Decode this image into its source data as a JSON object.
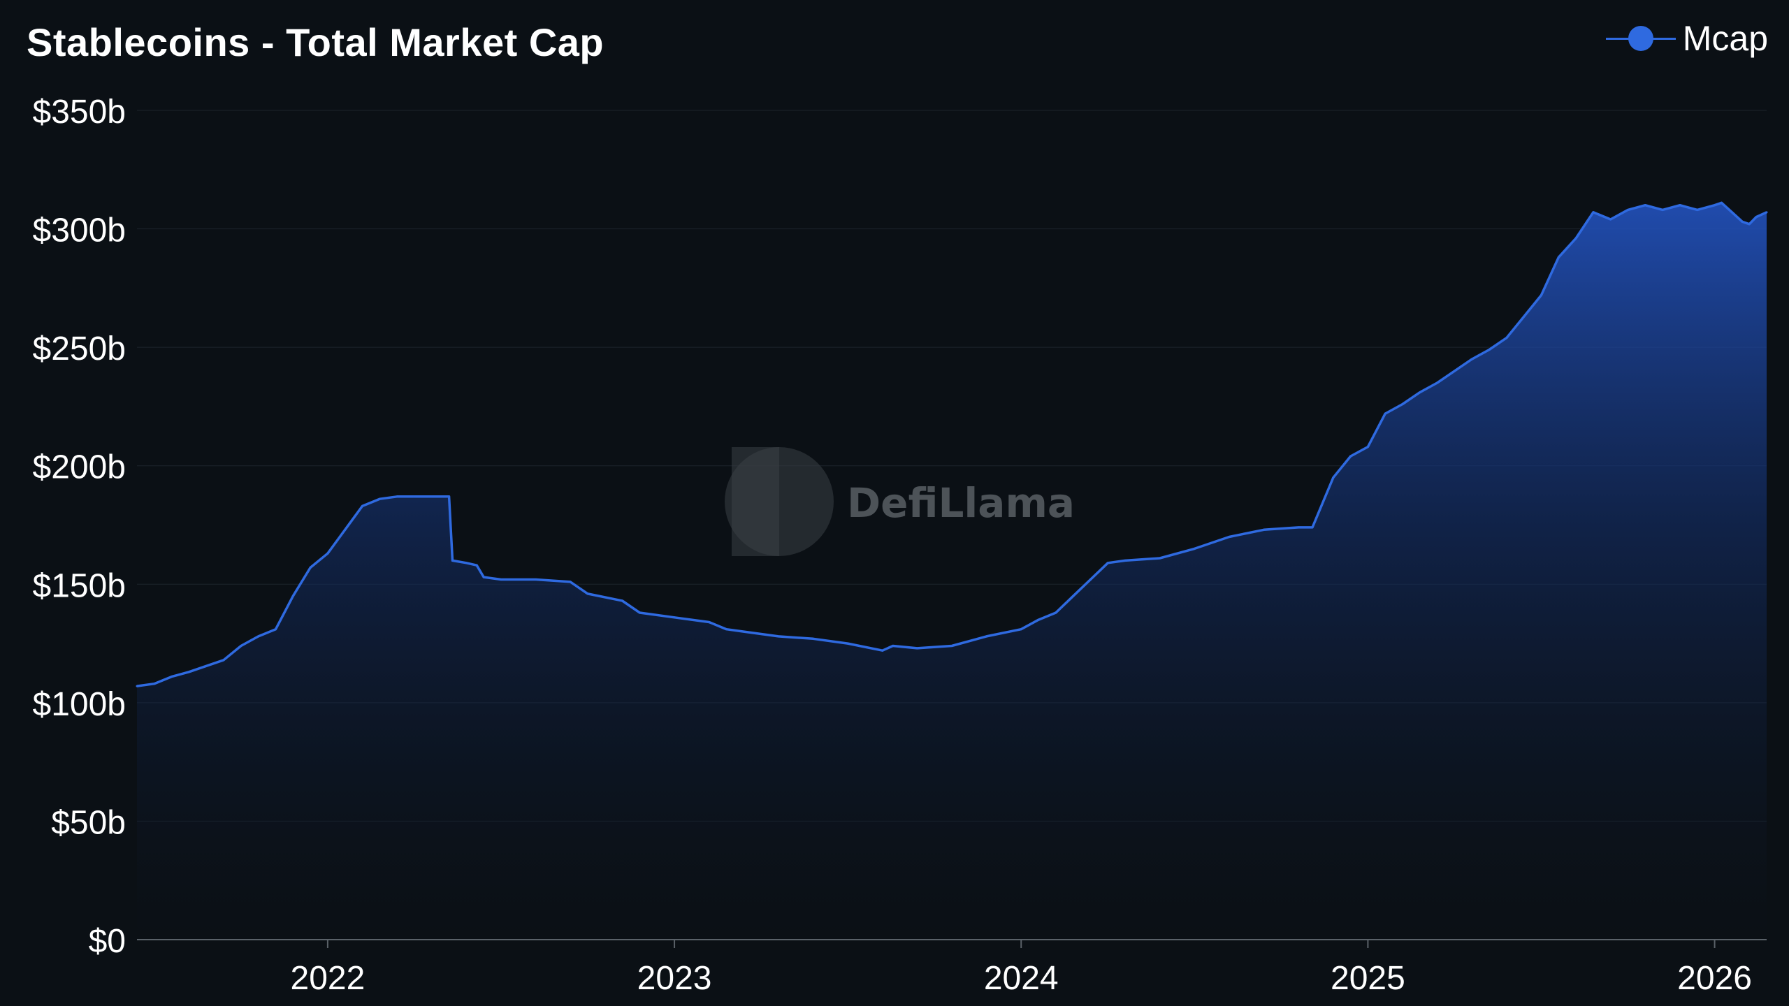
{
  "chart_data": {
    "type": "area",
    "title": "Stablecoins - Total Market Cap",
    "legend": {
      "placement": "top-right",
      "entries": [
        "Mcap"
      ]
    },
    "grid": true,
    "xlim": [
      2021.45,
      2026.15
    ],
    "ylim": [
      0,
      350
    ],
    "y_unit": "billions USD",
    "y_ticks": [
      0,
      50,
      100,
      150,
      200,
      250,
      300,
      350
    ],
    "y_tick_labels": [
      "$0",
      "$50b",
      "$100b",
      "$150b",
      "$200b",
      "$250b",
      "$300b",
      "$350b"
    ],
    "x_ticks": [
      2022,
      2023,
      2024,
      2025,
      2026
    ],
    "x_tick_labels": [
      "2022",
      "2023",
      "2024",
      "2025",
      "2026"
    ],
    "series": [
      {
        "name": "Mcap",
        "color": "#2f6ae0",
        "x": [
          2021.45,
          2021.5,
          2021.55,
          2021.6,
          2021.7,
          2021.75,
          2021.8,
          2021.85,
          2021.9,
          2021.95,
          2022.0,
          2022.05,
          2022.1,
          2022.15,
          2022.2,
          2022.25,
          2022.3,
          2022.35,
          2022.36,
          2022.4,
          2022.43,
          2022.45,
          2022.5,
          2022.6,
          2022.7,
          2022.75,
          2022.85,
          2022.9,
          2023.0,
          2023.1,
          2023.15,
          2023.2,
          2023.3,
          2023.4,
          2023.5,
          2023.6,
          2023.63,
          2023.7,
          2023.8,
          2023.9,
          2024.0,
          2024.05,
          2024.1,
          2024.15,
          2024.2,
          2024.25,
          2024.3,
          2024.4,
          2024.5,
          2024.6,
          2024.7,
          2024.8,
          2024.84,
          2024.9,
          2024.95,
          2025.0,
          2025.05,
          2025.1,
          2025.15,
          2025.2,
          2025.25,
          2025.3,
          2025.35,
          2025.4,
          2025.45,
          2025.5,
          2025.55,
          2025.6,
          2025.65,
          2025.7,
          2025.75,
          2025.8,
          2025.85,
          2025.9,
          2025.95,
          2026.0,
          2026.02,
          2026.05,
          2026.08,
          2026.1,
          2026.12,
          2026.15
        ],
        "y": [
          107,
          108,
          111,
          113,
          118,
          124,
          128,
          131,
          145,
          157,
          163,
          173,
          183,
          186,
          187,
          187,
          187,
          187,
          160,
          159,
          158,
          153,
          152,
          152,
          151,
          146,
          143,
          138,
          136,
          134,
          131,
          130,
          128,
          127,
          125,
          122,
          124,
          123,
          124,
          128,
          131,
          135,
          138,
          145,
          152,
          159,
          160,
          161,
          165,
          170,
          173,
          174,
          174,
          195,
          204,
          208,
          222,
          226,
          231,
          235,
          240,
          245,
          249,
          254,
          263,
          272,
          288,
          296,
          307,
          304,
          308,
          310,
          308,
          310,
          308,
          310,
          311,
          307,
          303,
          302,
          305,
          307
        ]
      }
    ]
  }
}
